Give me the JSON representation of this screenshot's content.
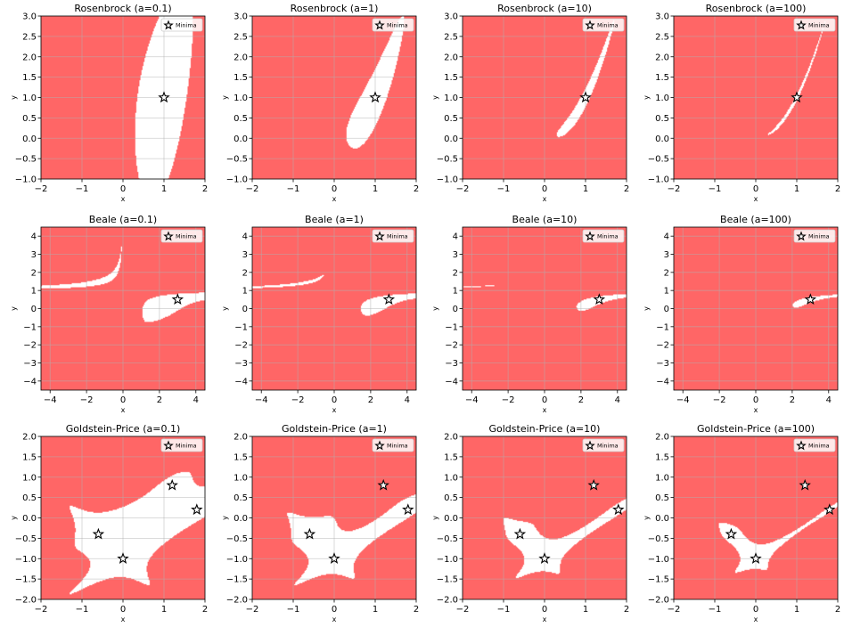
{
  "colors": {
    "fill": "#ff6666",
    "background": "#ffffff",
    "grid": "#b0b0b0",
    "star_fill": "#ffffff",
    "star_edge": "#000000"
  },
  "legend_label": "Minima",
  "chart_data": [
    {
      "type": "heatmap",
      "func": "rosenbrock",
      "a": 0.1,
      "title": "Rosenbrock (a=0.1)",
      "xlabel": "x",
      "ylabel": "y",
      "xlim": [
        -2,
        2
      ],
      "ylim": [
        -1,
        3
      ],
      "xticks": [
        -2,
        -1,
        0,
        1,
        2
      ],
      "yticks": [
        -1.0,
        -0.5,
        0.0,
        0.5,
        1.0,
        1.5,
        2.0,
        2.5,
        3.0
      ],
      "minima": [
        [
          1,
          1
        ]
      ],
      "legend": "top-right",
      "grid": true
    },
    {
      "type": "heatmap",
      "func": "rosenbrock",
      "a": 1,
      "title": "Rosenbrock (a=1)",
      "xlabel": "x",
      "ylabel": "y",
      "xlim": [
        -2,
        2
      ],
      "ylim": [
        -1,
        3
      ],
      "xticks": [
        -2,
        -1,
        0,
        1,
        2
      ],
      "yticks": [
        -1.0,
        -0.5,
        0.0,
        0.5,
        1.0,
        1.5,
        2.0,
        2.5,
        3.0
      ],
      "minima": [
        [
          1,
          1
        ]
      ],
      "legend": "top-right",
      "grid": true
    },
    {
      "type": "heatmap",
      "func": "rosenbrock",
      "a": 10,
      "title": "Rosenbrock (a=10)",
      "xlabel": "x",
      "ylabel": "y",
      "xlim": [
        -2,
        2
      ],
      "ylim": [
        -1,
        3
      ],
      "xticks": [
        -2,
        -1,
        0,
        1,
        2
      ],
      "yticks": [
        -1.0,
        -0.5,
        0.0,
        0.5,
        1.0,
        1.5,
        2.0,
        2.5,
        3.0
      ],
      "minima": [
        [
          1,
          1
        ]
      ],
      "legend": "top-right",
      "grid": true
    },
    {
      "type": "heatmap",
      "func": "rosenbrock",
      "a": 100,
      "title": "Rosenbrock (a=100)",
      "xlabel": "x",
      "ylabel": "y",
      "xlim": [
        -2,
        2
      ],
      "ylim": [
        -1,
        3
      ],
      "xticks": [
        -2,
        -1,
        0,
        1,
        2
      ],
      "yticks": [
        -1.0,
        -0.5,
        0.0,
        0.5,
        1.0,
        1.5,
        2.0,
        2.5,
        3.0
      ],
      "minima": [
        [
          1,
          1
        ]
      ],
      "legend": "top-right",
      "grid": true
    },
    {
      "type": "heatmap",
      "func": "beale",
      "a": 0.1,
      "title": "Beale (a=0.1)",
      "xlabel": "x",
      "ylabel": "y",
      "xlim": [
        -4.5,
        4.5
      ],
      "ylim": [
        -4.5,
        4.5
      ],
      "xticks": [
        -4,
        -2,
        0,
        2,
        4
      ],
      "yticks": [
        -4,
        -3,
        -2,
        -1,
        0,
        1,
        2,
        3,
        4
      ],
      "minima": [
        [
          3,
          0.5
        ]
      ],
      "legend": "top-right",
      "grid": true
    },
    {
      "type": "heatmap",
      "func": "beale",
      "a": 1,
      "title": "Beale (a=1)",
      "xlabel": "x",
      "ylabel": "y",
      "xlim": [
        -4.5,
        4.5
      ],
      "ylim": [
        -4.5,
        4.5
      ],
      "xticks": [
        -4,
        -2,
        0,
        2,
        4
      ],
      "yticks": [
        -4,
        -3,
        -2,
        -1,
        0,
        1,
        2,
        3,
        4
      ],
      "minima": [
        [
          3,
          0.5
        ]
      ],
      "legend": "top-right",
      "grid": true
    },
    {
      "type": "heatmap",
      "func": "beale",
      "a": 10,
      "title": "Beale (a=10)",
      "xlabel": "x",
      "ylabel": "y",
      "xlim": [
        -4.5,
        4.5
      ],
      "ylim": [
        -4.5,
        4.5
      ],
      "xticks": [
        -4,
        -2,
        0,
        2,
        4
      ],
      "yticks": [
        -4,
        -3,
        -2,
        -1,
        0,
        1,
        2,
        3,
        4
      ],
      "minima": [
        [
          3,
          0.5
        ]
      ],
      "legend": "top-right",
      "grid": true
    },
    {
      "type": "heatmap",
      "func": "beale",
      "a": 100,
      "title": "Beale (a=100)",
      "xlabel": "x",
      "ylabel": "y",
      "xlim": [
        -4.5,
        4.5
      ],
      "ylim": [
        -4.5,
        4.5
      ],
      "xticks": [
        -4,
        -2,
        0,
        2,
        4
      ],
      "yticks": [
        -4,
        -3,
        -2,
        -1,
        0,
        1,
        2,
        3,
        4
      ],
      "minima": [
        [
          3,
          0.5
        ]
      ],
      "legend": "top-right",
      "grid": true
    },
    {
      "type": "heatmap",
      "func": "goldstein",
      "a": 0.1,
      "title": "Goldstein-Price (a=0.1)",
      "xlabel": "x",
      "ylabel": "y",
      "xlim": [
        -2,
        2
      ],
      "ylim": [
        -2,
        2
      ],
      "xticks": [
        -2,
        -1,
        0,
        1,
        2
      ],
      "yticks": [
        -2.0,
        -1.5,
        -1.0,
        -0.5,
        0.0,
        0.5,
        1.0,
        1.5,
        2.0
      ],
      "minima": [
        [
          0,
          -1
        ],
        [
          -0.6,
          -0.4
        ],
        [
          1.2,
          0.8
        ],
        [
          1.8,
          0.2
        ]
      ],
      "legend": "top-right",
      "grid": true
    },
    {
      "type": "heatmap",
      "func": "goldstein",
      "a": 1,
      "title": "Goldstein-Price (a=1)",
      "xlabel": "x",
      "ylabel": "y",
      "xlim": [
        -2,
        2
      ],
      "ylim": [
        -2,
        2
      ],
      "xticks": [
        -2,
        -1,
        0,
        1,
        2
      ],
      "yticks": [
        -2.0,
        -1.5,
        -1.0,
        -0.5,
        0.0,
        0.5,
        1.0,
        1.5,
        2.0
      ],
      "minima": [
        [
          0,
          -1
        ],
        [
          -0.6,
          -0.4
        ],
        [
          1.2,
          0.8
        ],
        [
          1.8,
          0.2
        ]
      ],
      "legend": "top-right",
      "grid": true
    },
    {
      "type": "heatmap",
      "func": "goldstein",
      "a": 10,
      "title": "Goldstein-Price (a=10)",
      "xlabel": "x",
      "ylabel": "y",
      "xlim": [
        -2,
        2
      ],
      "ylim": [
        -2,
        2
      ],
      "xticks": [
        -2,
        -1,
        0,
        1,
        2
      ],
      "yticks": [
        -2.0,
        -1.5,
        -1.0,
        -0.5,
        0.0,
        0.5,
        1.0,
        1.5,
        2.0
      ],
      "minima": [
        [
          0,
          -1
        ],
        [
          -0.6,
          -0.4
        ],
        [
          1.2,
          0.8
        ],
        [
          1.8,
          0.2
        ]
      ],
      "legend": "top-right",
      "grid": true
    },
    {
      "type": "heatmap",
      "func": "goldstein",
      "a": 100,
      "title": "Goldstein-Price (a=100)",
      "xlabel": "x",
      "ylabel": "y",
      "xlim": [
        -2,
        2
      ],
      "ylim": [
        -2,
        2
      ],
      "xticks": [
        -2,
        -1,
        0,
        1,
        2
      ],
      "yticks": [
        -2.0,
        -1.5,
        -1.0,
        -0.5,
        0.0,
        0.5,
        1.0,
        1.5,
        2.0
      ],
      "minima": [
        [
          0,
          -1
        ],
        [
          -0.6,
          -0.4
        ],
        [
          1.2,
          0.8
        ],
        [
          1.8,
          0.2
        ]
      ],
      "legend": "top-right",
      "grid": true
    }
  ]
}
